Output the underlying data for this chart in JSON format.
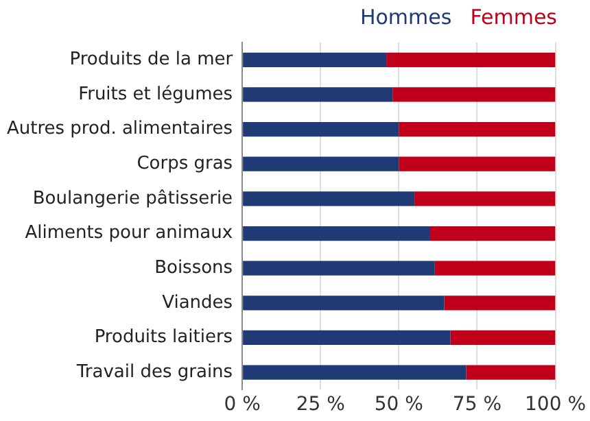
{
  "chart_data": {
    "type": "bar",
    "orientation": "horizontal",
    "stacked": true,
    "categories": [
      "Produits de la mer",
      "Fruits et légumes",
      "Autres prod. alimentaires",
      "Corps gras",
      "Boulangerie pâtisserie",
      "Aliments pour animaux",
      "Boissons",
      "Viandes",
      "Produits laitiers",
      "Travail des grains"
    ],
    "series": [
      {
        "name": "Hommes",
        "color": "#1f3a75",
        "values": [
          46,
          48,
          50,
          50,
          55,
          60,
          61.5,
          64.5,
          66.5,
          71.5
        ]
      },
      {
        "name": "Femmes",
        "color": "#c0001a",
        "values": [
          54,
          52,
          50,
          50,
          45,
          40,
          38.5,
          35.5,
          33.5,
          28.5
        ]
      }
    ],
    "xlim": [
      0,
      100
    ],
    "xticks": [
      {
        "value": 0,
        "label": "0 %"
      },
      {
        "value": 25,
        "label": "25 %"
      },
      {
        "value": 50,
        "label": "50 %"
      },
      {
        "value": 75,
        "label": "75 %"
      },
      {
        "value": 100,
        "label": "100 %"
      }
    ],
    "grid": "x",
    "legend": "top"
  }
}
